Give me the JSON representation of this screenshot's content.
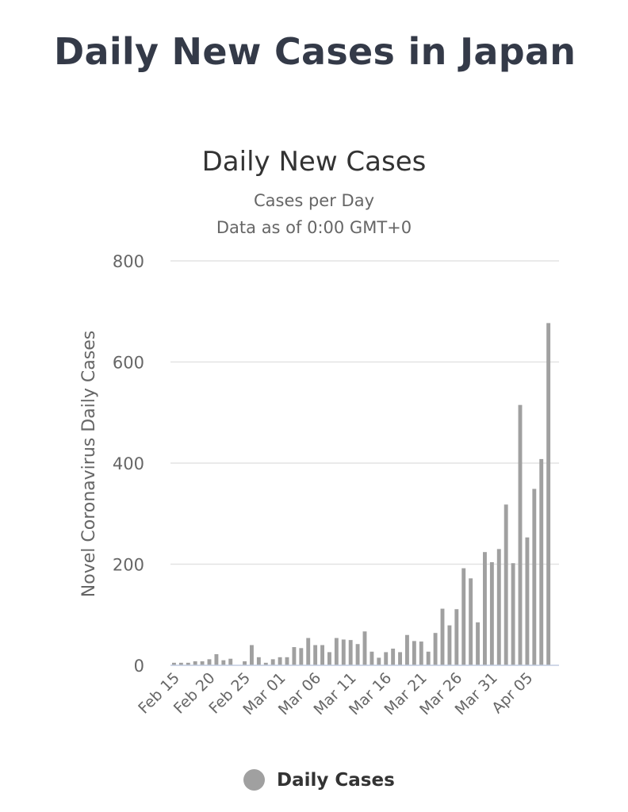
{
  "page": {
    "title": "Daily New Cases in Japan"
  },
  "chart_data": {
    "type": "bar",
    "title": "Daily New Cases",
    "subtitle_lines": [
      "Cases per Day",
      "Data as of 0:00 GMT+0"
    ],
    "ylabel": "Novel Coronavirus Daily Cases",
    "xlabel": "",
    "ylim": [
      0,
      800
    ],
    "yticks": [
      0,
      200,
      400,
      600,
      800
    ],
    "grid": true,
    "legend_position": "bottom-center",
    "bar_color": "#a0a0a0",
    "categories": [
      "Feb 15",
      "Feb 16",
      "Feb 17",
      "Feb 18",
      "Feb 19",
      "Feb 20",
      "Feb 21",
      "Feb 22",
      "Feb 23",
      "Feb 24",
      "Feb 25",
      "Feb 26",
      "Feb 27",
      "Feb 28",
      "Feb 29",
      "Mar 01",
      "Mar 02",
      "Mar 03",
      "Mar 04",
      "Mar 05",
      "Mar 06",
      "Mar 07",
      "Mar 08",
      "Mar 09",
      "Mar 10",
      "Mar 11",
      "Mar 12",
      "Mar 13",
      "Mar 14",
      "Mar 15",
      "Mar 16",
      "Mar 17",
      "Mar 18",
      "Mar 19",
      "Mar 20",
      "Mar 21",
      "Mar 22",
      "Mar 23",
      "Mar 24",
      "Mar 25",
      "Mar 26",
      "Mar 27",
      "Mar 28",
      "Mar 29",
      "Mar 30",
      "Mar 31",
      "Apr 01",
      "Apr 02",
      "Apr 03",
      "Apr 04",
      "Apr 05",
      "Apr 06",
      "Apr 07",
      "Apr 08",
      "Apr 09"
    ],
    "x_tick_labels": [
      "Feb 15",
      "Feb 20",
      "Feb 25",
      "Mar 01",
      "Mar 06",
      "Mar 11",
      "Mar 16",
      "Mar 21",
      "Mar 26",
      "Mar 31",
      "Apr 05"
    ],
    "series": [
      {
        "name": "Daily Cases",
        "values": [
          5,
          5,
          5,
          8,
          8,
          12,
          22,
          10,
          13,
          0,
          8,
          40,
          16,
          5,
          12,
          16,
          16,
          36,
          34,
          54,
          40,
          40,
          26,
          54,
          51,
          50,
          42,
          67,
          27,
          15,
          26,
          33,
          26,
          60,
          48,
          47,
          27,
          64,
          112,
          79,
          111,
          192,
          172,
          85,
          224,
          204,
          230,
          318,
          202,
          515,
          253,
          349,
          408,
          677,
          0
        ]
      }
    ]
  }
}
